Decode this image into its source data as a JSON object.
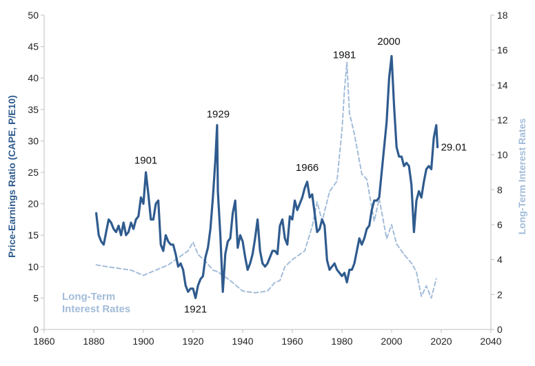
{
  "chart_data": {
    "type": "line",
    "xlabel": "",
    "ylabel": "Price-Earnings Ratio (CAPE, P/E10)",
    "ylabel_right": "Long-Term Interest Rates",
    "xlim": [
      1860,
      2040
    ],
    "ylim": [
      0,
      50
    ],
    "ylim_right": [
      0,
      18
    ],
    "x_ticks": [
      "1860",
      "1880",
      "1900",
      "1920",
      "1940",
      "1960",
      "1980",
      "2000",
      "2020",
      "2040"
    ],
    "y_ticks": [
      "0",
      "5",
      "10",
      "15",
      "20",
      "25",
      "30",
      "35",
      "40",
      "45",
      "50"
    ],
    "y_ticks_right": [
      "0",
      "2",
      "4",
      "6",
      "8",
      "10",
      "12",
      "14",
      "16",
      "18"
    ],
    "grid": false,
    "colors": {
      "cape": "#2f5b8e",
      "rates": "#a2bcd9",
      "axis": "#bfbfbf"
    },
    "series": [
      {
        "name": "",
        "axis": "left",
        "style": "solid",
        "x": [
          1881,
          1882,
          1883,
          1884,
          1885,
          1886,
          1887,
          1888,
          1889,
          1890,
          1891,
          1892,
          1893,
          1894,
          1895,
          1896,
          1897,
          1898,
          1899,
          1900,
          1901,
          1902,
          1903,
          1904,
          1905,
          1906,
          1907,
          1908,
          1909,
          1910,
          1911,
          1912,
          1913,
          1914,
          1915,
          1916,
          1917,
          1918,
          1919,
          1920,
          1921,
          1922,
          1923,
          1924,
          1925,
          1926,
          1927,
          1928,
          1929,
          1929.7,
          1930,
          1931,
          1932,
          1933,
          1934,
          1935,
          1936,
          1937,
          1938,
          1939,
          1940,
          1941,
          1942,
          1943,
          1944,
          1945,
          1946,
          1947,
          1948,
          1949,
          1950,
          1951,
          1952,
          1953,
          1954,
          1955,
          1956,
          1957,
          1958,
          1959,
          1960,
          1961,
          1962,
          1963,
          1964,
          1965,
          1966,
          1967,
          1968,
          1969,
          1970,
          1971,
          1972,
          1973,
          1974,
          1975,
          1976,
          1977,
          1978,
          1979,
          1980,
          1981,
          1982,
          1983,
          1984,
          1985,
          1986,
          1987,
          1988,
          1989,
          1990,
          1991,
          1992,
          1993,
          1994,
          1995,
          1996,
          1997,
          1998,
          1999,
          2000,
          2001,
          2002,
          2003,
          2004,
          2005,
          2006,
          2007,
          2008,
          2009,
          2010,
          2011,
          2012,
          2013,
          2014,
          2015,
          2016,
          2017,
          2018,
          2018.5
        ],
        "values": [
          18.5,
          15.0,
          14.0,
          13.5,
          15.5,
          17.5,
          17.0,
          16.0,
          15.5,
          16.5,
          15.0,
          17.0,
          15.0,
          15.5,
          17.0,
          16.0,
          17.5,
          18.0,
          21.0,
          20.0,
          25.0,
          21.5,
          17.5,
          17.5,
          20.0,
          20.5,
          13.5,
          12.5,
          15.0,
          14.0,
          13.5,
          13.5,
          12.0,
          10.0,
          10.5,
          9.5,
          7.0,
          6.0,
          6.5,
          6.5,
          5.0,
          7.0,
          8.0,
          8.5,
          11.5,
          13.0,
          16.0,
          21.0,
          27.0,
          32.5,
          22.0,
          15.0,
          6.0,
          12.0,
          14.0,
          14.5,
          18.5,
          20.5,
          13.0,
          15.0,
          14.0,
          11.5,
          9.5,
          10.5,
          12.0,
          14.5,
          17.5,
          12.5,
          10.5,
          10.0,
          10.5,
          11.5,
          12.5,
          12.5,
          12.0,
          16.5,
          17.5,
          14.5,
          13.5,
          18.0,
          17.5,
          20.5,
          19.0,
          20.0,
          21.0,
          22.5,
          23.5,
          21.0,
          21.5,
          18.5,
          15.5,
          16.0,
          17.5,
          16.5,
          11.0,
          9.5,
          10.0,
          10.5,
          9.5,
          9.0,
          8.5,
          9.0,
          7.5,
          9.5,
          9.5,
          10.5,
          12.5,
          14.5,
          13.5,
          14.5,
          16.0,
          16.5,
          19.0,
          20.5,
          20.5,
          21.0,
          25.0,
          29.0,
          33.0,
          40.0,
          43.5,
          35.5,
          29.0,
          27.5,
          27.5,
          26.0,
          26.5,
          26.0,
          23.0,
          15.5,
          20.5,
          22.0,
          21.0,
          23.5,
          25.5,
          26.0,
          25.5,
          30.5,
          32.5,
          29.0
        ]
      },
      {
        "name": "Long-Term Interest Rates",
        "axis": "right",
        "style": "dashed",
        "x": [
          1881,
          1885,
          1890,
          1895,
          1900,
          1905,
          1910,
          1915,
          1918,
          1920,
          1922,
          1925,
          1928,
          1930,
          1935,
          1940,
          1945,
          1950,
          1953,
          1955,
          1957,
          1960,
          1965,
          1968,
          1970,
          1972,
          1975,
          1978,
          1980,
          1981,
          1982,
          1983,
          1985,
          1988,
          1990,
          1993,
          1995,
          1998,
          2000,
          2002,
          2005,
          2008,
          2010,
          2012,
          2014,
          2016,
          2018
        ],
        "values": [
          3.7,
          3.6,
          3.5,
          3.4,
          3.1,
          3.4,
          3.7,
          4.2,
          4.5,
          5.0,
          4.3,
          3.9,
          3.4,
          3.3,
          2.8,
          2.2,
          2.1,
          2.2,
          2.7,
          2.8,
          3.6,
          4.0,
          4.5,
          5.9,
          7.3,
          6.2,
          7.9,
          8.5,
          11.4,
          13.7,
          15.3,
          12.4,
          11.2,
          8.9,
          8.6,
          6.2,
          7.5,
          5.2,
          6.0,
          4.9,
          4.3,
          3.8,
          3.3,
          1.9,
          2.5,
          1.8,
          2.9
        ]
      }
    ],
    "annotations": [
      {
        "text": "1901",
        "x": 1901,
        "y": 25.3
      },
      {
        "text": "1929",
        "x": 1929,
        "y": 32.6
      },
      {
        "text": "1921",
        "x": 1921,
        "y": 5.1
      },
      {
        "text": "1966",
        "x": 1966,
        "y": 24.1
      },
      {
        "text": "1981",
        "x": 1981,
        "y": 15.3
      },
      {
        "text": "2000",
        "x": 2000,
        "y": 44.2
      },
      {
        "text": "29.01",
        "x": 2018.5,
        "y": 29.0
      }
    ],
    "legend_note": [
      "Long-Term",
      "Interest Rates"
    ]
  }
}
